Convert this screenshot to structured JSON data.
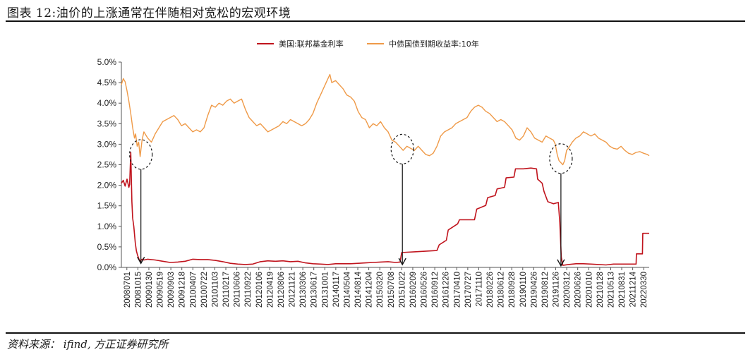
{
  "header": {
    "title": "图表 12:油价的上涨通常在伴随相对宽松的宏观环境"
  },
  "footer": {
    "source": "资料来源：  ifind,  方正证券研究所"
  },
  "chart_data": {
    "type": "line",
    "title": "图表 12:油价的上涨通常在伴随相对宽松的宏观环境",
    "xlabel": "",
    "ylabel": "",
    "ylim": [
      0,
      5
    ],
    "yticks": [
      "0.0%",
      "0.5%",
      "1.0%",
      "1.5%",
      "2.0%",
      "2.5%",
      "3.0%",
      "3.5%",
      "4.0%",
      "4.5%",
      "5.0%"
    ],
    "grid": false,
    "legend_position": "top-center",
    "x_start": 2008.5,
    "x_end": 2022.55,
    "x_tick_labels": [
      "20080701",
      "20081015",
      "20090130",
      "20090519",
      "20090903",
      "20091218",
      "20100407",
      "20100722",
      "20101103",
      "20110217",
      "20110606",
      "20110922",
      "20120106",
      "20120419",
      "20120806",
      "20121121",
      "20130306",
      "20130617",
      "20131001",
      "20140117",
      "20140504",
      "20140814",
      "20141204",
      "20150320",
      "20150708",
      "20151022",
      "20160209",
      "20160526",
      "20160912",
      "20161226",
      "20170410",
      "20170727",
      "20171110",
      "20180226",
      "20180612",
      "20180928",
      "20190110",
      "20190426",
      "20190812",
      "20191126",
      "20200312",
      "20200626",
      "20201010",
      "20210128",
      "20210513",
      "20210831",
      "20211214",
      "20220330"
    ],
    "series": [
      {
        "name": "美国:联邦基金利率",
        "color": "#c0141d",
        "points": [
          [
            2008.5,
            2.05
          ],
          [
            2008.55,
            2.12
          ],
          [
            2008.6,
            1.98
          ],
          [
            2008.65,
            2.15
          ],
          [
            2008.7,
            1.95
          ],
          [
            2008.72,
            2.02
          ],
          [
            2008.75,
            2.8
          ],
          [
            2008.78,
            1.6
          ],
          [
            2008.8,
            1.2
          ],
          [
            2008.83,
            1.0
          ],
          [
            2008.87,
            0.6
          ],
          [
            2008.9,
            0.4
          ],
          [
            2008.93,
            0.3
          ],
          [
            2008.97,
            0.2
          ],
          [
            2009.0,
            0.15
          ],
          [
            2009.05,
            0.2
          ],
          [
            2009.1,
            0.18
          ],
          [
            2009.2,
            0.2
          ],
          [
            2009.4,
            0.18
          ],
          [
            2009.6,
            0.15
          ],
          [
            2009.8,
            0.12
          ],
          [
            2010.0,
            0.13
          ],
          [
            2010.2,
            0.15
          ],
          [
            2010.4,
            0.2
          ],
          [
            2010.6,
            0.19
          ],
          [
            2010.8,
            0.19
          ],
          [
            2011.0,
            0.17
          ],
          [
            2011.2,
            0.14
          ],
          [
            2011.4,
            0.1
          ],
          [
            2011.6,
            0.08
          ],
          [
            2011.8,
            0.07
          ],
          [
            2012.0,
            0.08
          ],
          [
            2012.2,
            0.14
          ],
          [
            2012.4,
            0.16
          ],
          [
            2012.6,
            0.15
          ],
          [
            2012.8,
            0.16
          ],
          [
            2013.0,
            0.14
          ],
          [
            2013.2,
            0.15
          ],
          [
            2013.4,
            0.11
          ],
          [
            2013.6,
            0.09
          ],
          [
            2013.8,
            0.08
          ],
          [
            2014.0,
            0.07
          ],
          [
            2014.2,
            0.09
          ],
          [
            2014.4,
            0.09
          ],
          [
            2014.6,
            0.09
          ],
          [
            2014.8,
            0.1
          ],
          [
            2015.0,
            0.11
          ],
          [
            2015.2,
            0.12
          ],
          [
            2015.4,
            0.13
          ],
          [
            2015.6,
            0.14
          ],
          [
            2015.8,
            0.12
          ],
          [
            2015.92,
            0.13
          ],
          [
            2015.96,
            0.36
          ],
          [
            2016.1,
            0.37
          ],
          [
            2016.3,
            0.38
          ],
          [
            2016.5,
            0.39
          ],
          [
            2016.7,
            0.4
          ],
          [
            2016.9,
            0.41
          ],
          [
            2016.96,
            0.55
          ],
          [
            2017.15,
            0.66
          ],
          [
            2017.2,
            0.91
          ],
          [
            2017.45,
            1.06
          ],
          [
            2017.5,
            1.16
          ],
          [
            2017.9,
            1.16
          ],
          [
            2017.96,
            1.42
          ],
          [
            2018.2,
            1.51
          ],
          [
            2018.25,
            1.7
          ],
          [
            2018.45,
            1.75
          ],
          [
            2018.5,
            1.91
          ],
          [
            2018.7,
            1.95
          ],
          [
            2018.74,
            2.18
          ],
          [
            2018.95,
            2.2
          ],
          [
            2018.99,
            2.4
          ],
          [
            2019.2,
            2.4
          ],
          [
            2019.4,
            2.42
          ],
          [
            2019.55,
            2.4
          ],
          [
            2019.58,
            2.15
          ],
          [
            2019.7,
            2.05
          ],
          [
            2019.75,
            1.85
          ],
          [
            2019.85,
            1.6
          ],
          [
            2020.0,
            1.55
          ],
          [
            2020.13,
            1.58
          ],
          [
            2020.17,
            1.1
          ],
          [
            2020.21,
            0.25
          ],
          [
            2020.25,
            0.05
          ],
          [
            2020.4,
            0.07
          ],
          [
            2020.6,
            0.09
          ],
          [
            2020.8,
            0.09
          ],
          [
            2021.0,
            0.08
          ],
          [
            2021.2,
            0.07
          ],
          [
            2021.4,
            0.06
          ],
          [
            2021.6,
            0.08
          ],
          [
            2021.8,
            0.08
          ],
          [
            2022.0,
            0.08
          ],
          [
            2022.2,
            0.08
          ],
          [
            2022.21,
            0.33
          ],
          [
            2022.37,
            0.33
          ],
          [
            2022.38,
            0.83
          ],
          [
            2022.55,
            0.83
          ]
        ]
      },
      {
        "name": "中债国债到期收益率:10年",
        "color": "#ef9a48",
        "points": [
          [
            2008.5,
            4.45
          ],
          [
            2008.55,
            4.6
          ],
          [
            2008.6,
            4.52
          ],
          [
            2008.65,
            4.3
          ],
          [
            2008.7,
            4.05
          ],
          [
            2008.75,
            3.75
          ],
          [
            2008.8,
            3.4
          ],
          [
            2008.85,
            3.15
          ],
          [
            2008.88,
            3.25
          ],
          [
            2008.92,
            2.95
          ],
          [
            2008.96,
            3.05
          ],
          [
            2009.0,
            2.7
          ],
          [
            2009.05,
            3.1
          ],
          [
            2009.1,
            3.3
          ],
          [
            2009.2,
            3.15
          ],
          [
            2009.3,
            3.05
          ],
          [
            2009.4,
            3.25
          ],
          [
            2009.5,
            3.4
          ],
          [
            2009.6,
            3.55
          ],
          [
            2009.7,
            3.6
          ],
          [
            2009.8,
            3.65
          ],
          [
            2009.9,
            3.7
          ],
          [
            2010.0,
            3.6
          ],
          [
            2010.1,
            3.45
          ],
          [
            2010.2,
            3.5
          ],
          [
            2010.3,
            3.4
          ],
          [
            2010.4,
            3.3
          ],
          [
            2010.5,
            3.35
          ],
          [
            2010.6,
            3.3
          ],
          [
            2010.7,
            3.4
          ],
          [
            2010.8,
            3.7
          ],
          [
            2010.9,
            3.95
          ],
          [
            2011.0,
            3.9
          ],
          [
            2011.1,
            4.0
          ],
          [
            2011.2,
            3.95
          ],
          [
            2011.3,
            4.05
          ],
          [
            2011.4,
            4.1
          ],
          [
            2011.5,
            4.0
          ],
          [
            2011.6,
            4.05
          ],
          [
            2011.7,
            4.1
          ],
          [
            2011.8,
            3.85
          ],
          [
            2011.9,
            3.65
          ],
          [
            2012.0,
            3.55
          ],
          [
            2012.1,
            3.45
          ],
          [
            2012.2,
            3.5
          ],
          [
            2012.3,
            3.4
          ],
          [
            2012.4,
            3.3
          ],
          [
            2012.5,
            3.35
          ],
          [
            2012.6,
            3.4
          ],
          [
            2012.7,
            3.45
          ],
          [
            2012.8,
            3.55
          ],
          [
            2012.9,
            3.5
          ],
          [
            2013.0,
            3.6
          ],
          [
            2013.1,
            3.55
          ],
          [
            2013.2,
            3.5
          ],
          [
            2013.3,
            3.45
          ],
          [
            2013.4,
            3.5
          ],
          [
            2013.5,
            3.6
          ],
          [
            2013.6,
            3.75
          ],
          [
            2013.7,
            4.0
          ],
          [
            2013.8,
            4.2
          ],
          [
            2013.9,
            4.4
          ],
          [
            2014.0,
            4.6
          ],
          [
            2014.05,
            4.7
          ],
          [
            2014.1,
            4.5
          ],
          [
            2014.2,
            4.55
          ],
          [
            2014.3,
            4.45
          ],
          [
            2014.4,
            4.35
          ],
          [
            2014.5,
            4.2
          ],
          [
            2014.6,
            4.15
          ],
          [
            2014.7,
            4.05
          ],
          [
            2014.8,
            3.8
          ],
          [
            2014.9,
            3.65
          ],
          [
            2015.0,
            3.6
          ],
          [
            2015.1,
            3.4
          ],
          [
            2015.2,
            3.5
          ],
          [
            2015.3,
            3.45
          ],
          [
            2015.4,
            3.55
          ],
          [
            2015.5,
            3.4
          ],
          [
            2015.6,
            3.3
          ],
          [
            2015.7,
            3.1
          ],
          [
            2015.8,
            3.05
          ],
          [
            2015.9,
            2.95
          ],
          [
            2016.0,
            2.85
          ],
          [
            2016.1,
            2.95
          ],
          [
            2016.2,
            2.9
          ],
          [
            2016.3,
            2.85
          ],
          [
            2016.4,
            2.95
          ],
          [
            2016.5,
            2.85
          ],
          [
            2016.6,
            2.75
          ],
          [
            2016.7,
            2.72
          ],
          [
            2016.8,
            2.78
          ],
          [
            2016.9,
            2.95
          ],
          [
            2017.0,
            3.2
          ],
          [
            2017.1,
            3.3
          ],
          [
            2017.2,
            3.35
          ],
          [
            2017.3,
            3.4
          ],
          [
            2017.4,
            3.5
          ],
          [
            2017.5,
            3.55
          ],
          [
            2017.6,
            3.6
          ],
          [
            2017.7,
            3.65
          ],
          [
            2017.8,
            3.8
          ],
          [
            2017.9,
            3.9
          ],
          [
            2018.0,
            3.95
          ],
          [
            2018.1,
            3.9
          ],
          [
            2018.2,
            3.8
          ],
          [
            2018.3,
            3.75
          ],
          [
            2018.4,
            3.65
          ],
          [
            2018.5,
            3.55
          ],
          [
            2018.6,
            3.6
          ],
          [
            2018.7,
            3.55
          ],
          [
            2018.8,
            3.45
          ],
          [
            2018.9,
            3.35
          ],
          [
            2019.0,
            3.15
          ],
          [
            2019.1,
            3.1
          ],
          [
            2019.2,
            3.2
          ],
          [
            2019.3,
            3.4
          ],
          [
            2019.4,
            3.3
          ],
          [
            2019.5,
            3.15
          ],
          [
            2019.6,
            3.1
          ],
          [
            2019.7,
            3.05
          ],
          [
            2019.8,
            3.2
          ],
          [
            2019.9,
            3.15
          ],
          [
            2020.0,
            3.1
          ],
          [
            2020.05,
            3.0
          ],
          [
            2020.1,
            2.75
          ],
          [
            2020.15,
            2.6
          ],
          [
            2020.2,
            2.55
          ],
          [
            2020.25,
            2.5
          ],
          [
            2020.3,
            2.6
          ],
          [
            2020.35,
            2.85
          ],
          [
            2020.4,
            2.9
          ],
          [
            2020.5,
            3.05
          ],
          [
            2020.6,
            3.15
          ],
          [
            2020.7,
            3.2
          ],
          [
            2020.8,
            3.3
          ],
          [
            2020.9,
            3.25
          ],
          [
            2021.0,
            3.2
          ],
          [
            2021.1,
            3.25
          ],
          [
            2021.2,
            3.15
          ],
          [
            2021.3,
            3.1
          ],
          [
            2021.4,
            3.05
          ],
          [
            2021.5,
            2.95
          ],
          [
            2021.6,
            2.9
          ],
          [
            2021.7,
            2.88
          ],
          [
            2021.8,
            2.95
          ],
          [
            2021.9,
            2.85
          ],
          [
            2022.0,
            2.78
          ],
          [
            2022.1,
            2.75
          ],
          [
            2022.2,
            2.8
          ],
          [
            2022.3,
            2.82
          ],
          [
            2022.4,
            2.78
          ],
          [
            2022.5,
            2.75
          ],
          [
            2022.55,
            2.72
          ]
        ]
      }
    ],
    "annotations": [
      {
        "label": "circle-2009",
        "cx": 2009.02,
        "cy": 2.75,
        "arrow_to_x": 2009.02,
        "arrow_to_y": 0.08
      },
      {
        "label": "circle-2016",
        "cx": 2015.98,
        "cy": 2.88,
        "arrow_to_x": 2015.98,
        "arrow_to_y": 0.05
      },
      {
        "label": "circle-2020",
        "cx": 2020.2,
        "cy": 2.65,
        "arrow_to_x": 2020.2,
        "arrow_to_y": 0.02
      }
    ]
  }
}
